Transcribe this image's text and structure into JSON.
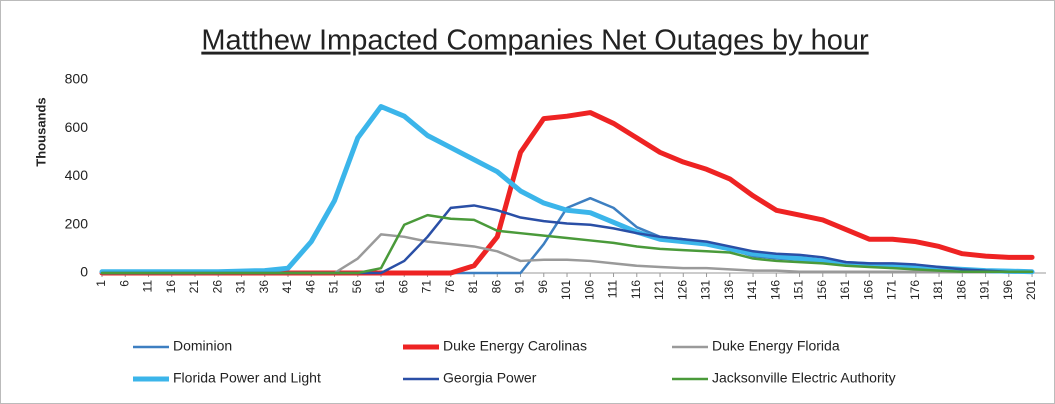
{
  "chart_data": {
    "type": "line",
    "title": "Matthew Impacted Companies Net Outages by hour",
    "y_label": "Thousands",
    "x": [
      1,
      6,
      11,
      16,
      21,
      26,
      31,
      36,
      41,
      46,
      51,
      56,
      61,
      66,
      71,
      76,
      81,
      86,
      91,
      96,
      101,
      106,
      111,
      116,
      121,
      126,
      131,
      136,
      141,
      146,
      151,
      156,
      161,
      166,
      171,
      176,
      181,
      186,
      191,
      196,
      201
    ],
    "xlim": [
      1,
      204
    ],
    "xticks": [
      1,
      6,
      11,
      16,
      21,
      26,
      31,
      36,
      41,
      46,
      51,
      56,
      61,
      66,
      71,
      76,
      81,
      86,
      91,
      96,
      101,
      106,
      111,
      116,
      121,
      126,
      131,
      136,
      141,
      146,
      151,
      156,
      161,
      166,
      171,
      176,
      181,
      186,
      191,
      196,
      201
    ],
    "ylim": [
      0,
      800
    ],
    "yticks": [
      0,
      200,
      400,
      600,
      800
    ],
    "grid": false,
    "legend": "bottom",
    "series": [
      {
        "name": "Dominion",
        "color": "#3d7fc1",
        "line_width": 2.5,
        "values": [
          0,
          0,
          0,
          0,
          0,
          0,
          0,
          0,
          0,
          0,
          0,
          0,
          0,
          0,
          0,
          0,
          0,
          0,
          0,
          120,
          270,
          310,
          270,
          190,
          150,
          140,
          125,
          100,
          70,
          60,
          55,
          45,
          35,
          30,
          25,
          30,
          20,
          10,
          5,
          2,
          2
        ]
      },
      {
        "name": "Duke Energy Carolinas",
        "color": "#ee2323",
        "line_width": 5,
        "values": [
          0,
          0,
          0,
          0,
          0,
          0,
          0,
          0,
          0,
          0,
          0,
          0,
          0,
          0,
          0,
          0,
          30,
          150,
          500,
          640,
          650,
          665,
          620,
          560,
          500,
          460,
          430,
          390,
          320,
          260,
          240,
          220,
          180,
          140,
          140,
          130,
          110,
          80,
          70,
          65,
          65
        ]
      },
      {
        "name": "Duke Energy Florida",
        "color": "#9a9a9a",
        "line_width": 2.5,
        "values": [
          0,
          0,
          0,
          0,
          0,
          0,
          0,
          0,
          0,
          0,
          0,
          60,
          160,
          150,
          130,
          120,
          110,
          90,
          50,
          55,
          55,
          50,
          40,
          30,
          25,
          20,
          20,
          15,
          10,
          10,
          5,
          5,
          5,
          5,
          5,
          5,
          5,
          5,
          5,
          5,
          5
        ]
      },
      {
        "name": "Florida Power and Light",
        "color": "#3bb5ea",
        "line_width": 5,
        "values": [
          5,
          5,
          5,
          5,
          5,
          5,
          8,
          10,
          20,
          130,
          300,
          560,
          690,
          650,
          570,
          520,
          470,
          420,
          340,
          290,
          260,
          250,
          210,
          170,
          140,
          130,
          120,
          100,
          80,
          70,
          60,
          50,
          40,
          35,
          30,
          25,
          20,
          15,
          10,
          8,
          5
        ]
      },
      {
        "name": "Georgia Power",
        "color": "#2a4fa6",
        "line_width": 2.5,
        "values": [
          0,
          0,
          0,
          0,
          0,
          0,
          0,
          0,
          0,
          0,
          0,
          0,
          0,
          50,
          150,
          270,
          280,
          260,
          230,
          215,
          205,
          200,
          185,
          165,
          150,
          140,
          130,
          110,
          90,
          80,
          75,
          65,
          45,
          40,
          40,
          35,
          25,
          15,
          10,
          5,
          5
        ]
      },
      {
        "name": "Jacksonville Electric Authority",
        "color": "#4a9a3a",
        "line_width": 2.5,
        "values": [
          0,
          0,
          0,
          0,
          0,
          0,
          0,
          0,
          0,
          0,
          0,
          0,
          20,
          200,
          240,
          225,
          220,
          175,
          165,
          155,
          145,
          135,
          125,
          110,
          100,
          95,
          90,
          85,
          60,
          50,
          45,
          40,
          30,
          25,
          20,
          15,
          10,
          5,
          5,
          5,
          5
        ]
      }
    ]
  }
}
